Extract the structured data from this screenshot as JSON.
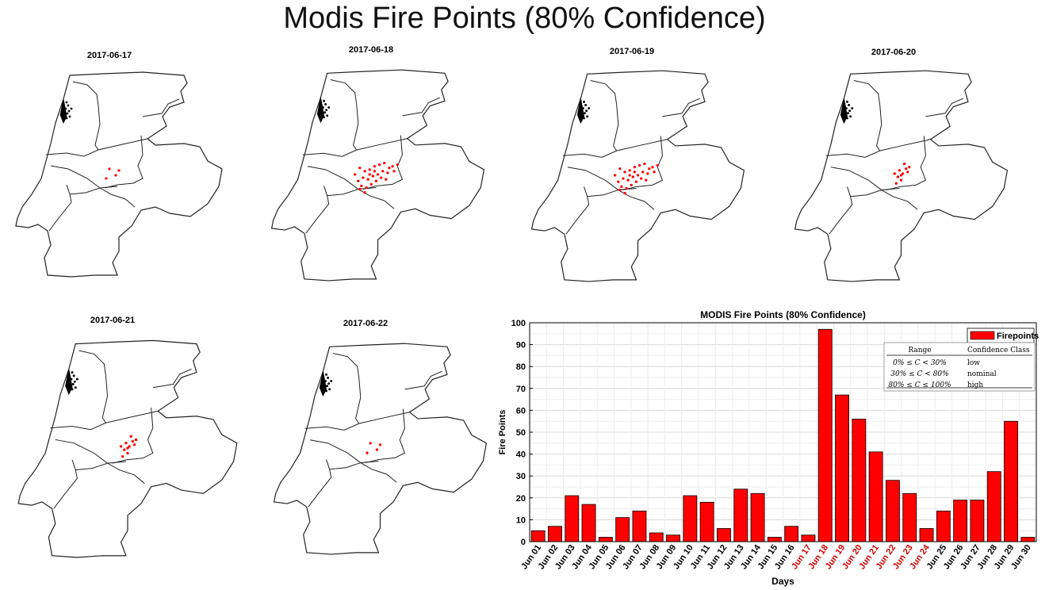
{
  "page_title": "Modis Fire Points (80% Confidence)",
  "colors": {
    "fire": "#ff0000",
    "outline": "#222222",
    "coast": "#000000",
    "highlight_tick": "#d40000"
  },
  "maps": [
    {
      "date": "2017-06-17",
      "fire_level": "low"
    },
    {
      "date": "2017-06-18",
      "fire_level": "high"
    },
    {
      "date": "2017-06-19",
      "fire_level": "high"
    },
    {
      "date": "2017-06-20",
      "fire_level": "medium"
    },
    {
      "date": "2017-06-21",
      "fire_level": "medium"
    },
    {
      "date": "2017-06-22",
      "fire_level": "low"
    }
  ],
  "chart_data": {
    "type": "bar",
    "title": "MODIS Fire Points (80% Confidence)",
    "xlabel": "Days",
    "ylabel": "Fire Points",
    "ylim": [
      0,
      100
    ],
    "yticks": [
      0,
      10,
      20,
      30,
      40,
      50,
      60,
      70,
      80,
      90,
      100
    ],
    "grid": true,
    "legend": {
      "entry": "Firepoints",
      "placement": "top-right"
    },
    "categories": [
      "Jun 01",
      "Jun 02",
      "Jun 03",
      "Jun 04",
      "Jun 05",
      "Jun 06",
      "Jun 07",
      "Jun 08",
      "Jun 09",
      "Jun 10",
      "Jun 11",
      "Jun 12",
      "Jun 13",
      "Jun 14",
      "Jun 15",
      "Jun 16",
      "Jun 17",
      "Jun 18",
      "Jun 19",
      "Jun 20",
      "Jun 21",
      "Jun 22",
      "Jun 23",
      "Jun 24",
      "Jun 25",
      "Jun 26",
      "Jun 27",
      "Jun 28",
      "Jun 29",
      "Jun 30"
    ],
    "values": [
      5,
      7,
      21,
      17,
      2,
      11,
      14,
      4,
      3,
      21,
      18,
      6,
      24,
      22,
      2,
      7,
      3,
      97,
      67,
      56,
      41,
      28,
      22,
      6,
      14,
      19,
      19,
      32,
      55,
      2
    ],
    "highlighted_categories": [
      "Jun 17",
      "Jun 18",
      "Jun 19",
      "Jun 20",
      "Jun 21",
      "Jun 22",
      "Jun 23",
      "Jun 24"
    ],
    "confidence_table": {
      "headers": [
        "Range",
        "Confidence Class"
      ],
      "rows": [
        [
          "0% ≤ C < 30%",
          "low"
        ],
        [
          "30% ≤ C < 80%",
          "nominal"
        ],
        [
          "80% ≤ C ≤ 100%",
          "high"
        ]
      ]
    }
  }
}
